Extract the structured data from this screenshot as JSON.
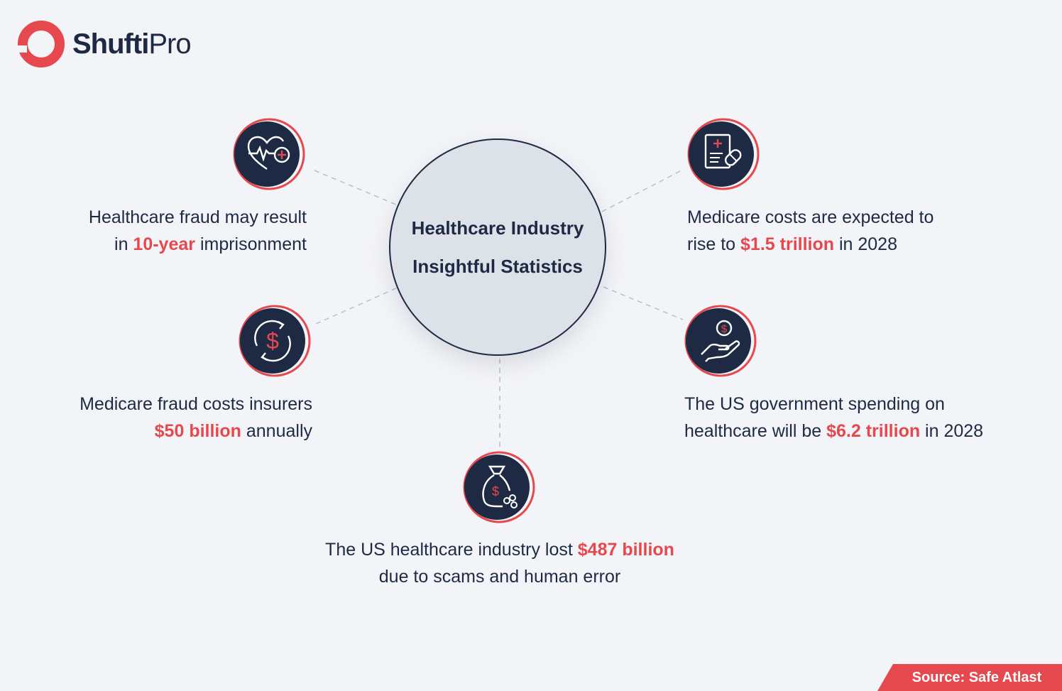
{
  "brand": {
    "name_bold": "Shufti",
    "name_light": "Pro"
  },
  "center": {
    "line1": "Healthcare Industry",
    "line2": "Insightful Statistics"
  },
  "stats": [
    {
      "icon": "heart-rate-icon",
      "pre": "Healthcare fraud may result",
      "pre2": "in ",
      "highlight": "10-year",
      "post": " imprisonment"
    },
    {
      "icon": "dollar-cycle-icon",
      "pre": "Medicare fraud costs insurers",
      "pre2": "",
      "highlight": "$50 billion",
      "post": " annually"
    },
    {
      "icon": "money-bag-icon",
      "pre": "The US healthcare industry lost ",
      "highlight": "$487 billion",
      "post2": "due to scams and human error"
    },
    {
      "icon": "prescription-pill-icon",
      "pre": "Medicare costs are expected to",
      "pre2": "rise to ",
      "highlight": "$1.5 trillion",
      "post": " in 2028"
    },
    {
      "icon": "hand-coin-icon",
      "pre": "The US government spending on",
      "pre2": "healthcare will be ",
      "highlight": "$6.2 trillion",
      "post": " in 2028"
    }
  ],
  "source": "Source: Safe Atlast",
  "colors": {
    "navy": "#1e2a44",
    "accent": "#e5484d",
    "background": "#f3f4f8",
    "center_fill": "#dde1e8"
  }
}
